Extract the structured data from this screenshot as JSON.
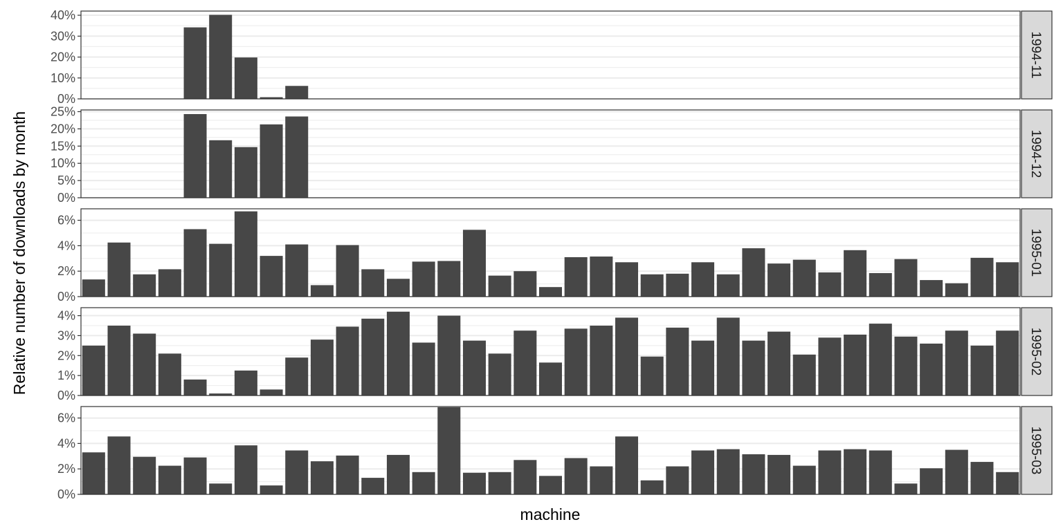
{
  "chart_data": {
    "type": "bar",
    "facet_layout": "rows",
    "xlabel": "machine",
    "ylabel": "Relative number of downloads by month",
    "n_categories": 37,
    "grid": true,
    "colors": {
      "bar": "#474747",
      "strip_fill": "#d9d9d9",
      "panel_border": "#333333",
      "grid": "#ebebeb"
    },
    "panels": [
      {
        "label": "1994-11",
        "ylim": [
          0,
          42
        ],
        "ticks": [
          0,
          10,
          20,
          30,
          40
        ],
        "tick_labels": [
          "0%",
          "10%",
          "20%",
          "30%",
          "40%"
        ],
        "values": [
          null,
          null,
          null,
          null,
          34.2,
          40.2,
          19.8,
          0.8,
          6.2,
          null,
          null,
          null,
          null,
          null,
          null,
          null,
          null,
          null,
          null,
          null,
          null,
          null,
          null,
          null,
          null,
          null,
          null,
          null,
          null,
          null,
          null,
          null,
          null,
          null,
          null,
          null,
          null
        ]
      },
      {
        "label": "1994-12",
        "ylim": [
          0,
          25.5
        ],
        "ticks": [
          0,
          5,
          10,
          15,
          20,
          25
        ],
        "tick_labels": [
          "0%",
          "5%",
          "10%",
          "15%",
          "20%",
          "25%"
        ],
        "values": [
          null,
          null,
          null,
          null,
          24.3,
          16.7,
          14.7,
          21.3,
          23.6,
          null,
          null,
          null,
          null,
          null,
          null,
          null,
          null,
          null,
          null,
          null,
          null,
          null,
          null,
          null,
          null,
          null,
          null,
          null,
          null,
          null,
          null,
          null,
          null,
          null,
          null,
          null,
          null
        ]
      },
      {
        "label": "1995-01",
        "ylim": [
          0,
          6.9
        ],
        "ticks": [
          0,
          2,
          4,
          6
        ],
        "tick_labels": [
          "0%",
          "2%",
          "4%",
          "6%"
        ],
        "values": [
          1.35,
          4.25,
          1.75,
          2.15,
          5.3,
          4.15,
          6.7,
          3.2,
          4.1,
          0.9,
          4.05,
          2.15,
          1.4,
          2.75,
          2.8,
          5.25,
          1.65,
          2.0,
          0.75,
          3.1,
          3.15,
          2.7,
          1.75,
          1.8,
          2.7,
          1.75,
          3.8,
          2.6,
          2.9,
          1.9,
          3.65,
          1.85,
          2.95,
          1.3,
          1.05,
          3.05,
          2.7
        ]
      },
      {
        "label": "1995-02",
        "ylim": [
          0,
          4.4
        ],
        "ticks": [
          0,
          1,
          2,
          3,
          4
        ],
        "tick_labels": [
          "0%",
          "1%",
          "2%",
          "3%",
          "4%"
        ],
        "values": [
          2.5,
          3.5,
          3.1,
          2.1,
          0.8,
          0.1,
          1.25,
          0.3,
          1.9,
          2.8,
          3.45,
          3.85,
          4.2,
          2.65,
          4.0,
          2.75,
          2.1,
          3.25,
          1.65,
          3.35,
          3.5,
          3.9,
          1.95,
          3.4,
          2.75,
          3.9,
          2.75,
          3.2,
          2.05,
          2.9,
          3.05,
          3.6,
          2.95,
          2.6,
          3.25,
          2.5,
          3.25
        ]
      },
      {
        "label": "1995-03",
        "ylim": [
          0,
          6.9
        ],
        "ticks": [
          0,
          2,
          4,
          6
        ],
        "tick_labels": [
          "0%",
          "2%",
          "4%",
          "6%"
        ],
        "values": [
          3.3,
          4.55,
          2.95,
          2.25,
          2.9,
          0.85,
          3.85,
          0.7,
          3.45,
          2.6,
          3.05,
          1.3,
          3.1,
          1.75,
          6.85,
          1.7,
          1.75,
          2.7,
          1.45,
          2.85,
          2.2,
          4.55,
          1.1,
          2.2,
          3.45,
          3.55,
          3.15,
          3.1,
          2.25,
          3.45,
          3.55,
          3.45,
          0.85,
          2.05,
          3.5,
          2.55,
          1.75
        ]
      }
    ]
  }
}
